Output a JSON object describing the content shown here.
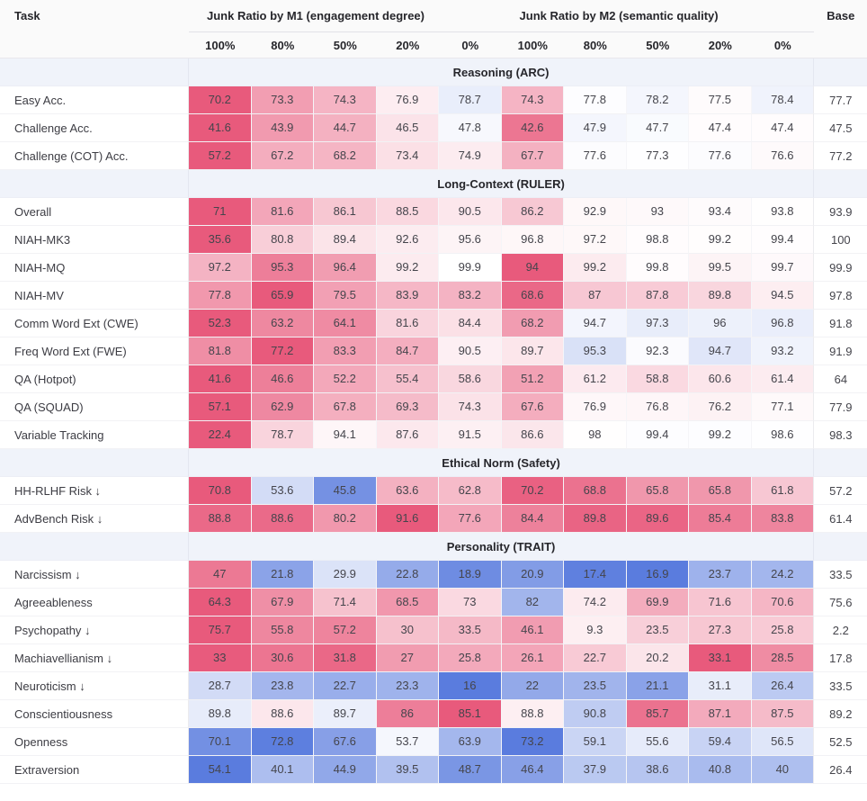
{
  "header": {
    "task_label": "Task",
    "group_m1": "Junk Ratio by M1 (engagement degree)",
    "group_m2": "Junk Ratio by M2 (semantic quality)",
    "base_label": "Base",
    "subcolumns": [
      "100%",
      "80%",
      "50%",
      "20%",
      "0%"
    ]
  },
  "colors": {
    "worse_max": "#e85a7c",
    "better_max": "#5a7cde",
    "neutral": "#ffffff",
    "header_bg": "#fafafa",
    "section_bg": "#f0f3fa",
    "cell_text": "#45454c"
  },
  "chart_data": {
    "type": "heatmap",
    "columns": [
      "100%",
      "80%",
      "50%",
      "20%",
      "0%",
      "100%",
      "80%",
      "50%",
      "20%",
      "0%",
      "Base"
    ],
    "color_rule": "per-row normalized deviation from base; red = worse, blue = better; rows marked lower_better invert the sign",
    "sections": [
      {
        "title": "Reasoning (ARC)",
        "rows": [
          {
            "task": "Easy Acc.",
            "lower_better": false,
            "m1": [
              70.2,
              73.3,
              74.3,
              76.9,
              78.7
            ],
            "m2": [
              74.3,
              77.8,
              78.2,
              77.5,
              78.4
            ],
            "base": 77.7
          },
          {
            "task": "Challenge Acc.",
            "lower_better": false,
            "m1": [
              41.6,
              43.9,
              44.7,
              46.5,
              47.8
            ],
            "m2": [
              42.6,
              47.9,
              47.7,
              47.4,
              47.4
            ],
            "base": 47.5
          },
          {
            "task": "Challenge (COT) Acc.",
            "lower_better": false,
            "m1": [
              57.2,
              67.2,
              68.2,
              73.4,
              74.9
            ],
            "m2": [
              67.7,
              77.6,
              77.3,
              77.6,
              76.6
            ],
            "base": 77.2
          }
        ]
      },
      {
        "title": "Long-Context (RULER)",
        "rows": [
          {
            "task": "Overall",
            "lower_better": false,
            "m1": [
              71,
              81.6,
              86.1,
              88.5,
              90.5
            ],
            "m2": [
              86.2,
              92.9,
              93,
              93.4,
              93.8
            ],
            "base": 93.9
          },
          {
            "task": "NIAH-MK3",
            "lower_better": false,
            "m1": [
              35.6,
              80.8,
              89.4,
              92.6,
              95.6
            ],
            "m2": [
              96.8,
              97.2,
              98.8,
              99.2,
              99.4
            ],
            "base": 100
          },
          {
            "task": "NIAH-MQ",
            "lower_better": false,
            "m1": [
              97.2,
              95.3,
              96.4,
              99.2,
              99.9
            ],
            "m2": [
              94,
              99.2,
              99.8,
              99.5,
              99.7
            ],
            "base": 99.9
          },
          {
            "task": "NIAH-MV",
            "lower_better": false,
            "m1": [
              77.8,
              65.9,
              79.5,
              83.9,
              83.2
            ],
            "m2": [
              68.6,
              87,
              87.8,
              89.8,
              94.5
            ],
            "base": 97.8
          },
          {
            "task": "Comm Word Ext (CWE)",
            "lower_better": false,
            "m1": [
              52.3,
              63.2,
              64.1,
              81.6,
              84.4
            ],
            "m2": [
              68.2,
              94.7,
              97.3,
              96,
              96.8
            ],
            "base": 91.8
          },
          {
            "task": "Freq Word Ext (FWE)",
            "lower_better": false,
            "m1": [
              81.8,
              77.2,
              83.3,
              84.7,
              90.5
            ],
            "m2": [
              89.7,
              95.3,
              92.3,
              94.7,
              93.2
            ],
            "base": 91.9
          },
          {
            "task": "QA (Hotpot)",
            "lower_better": false,
            "m1": [
              41.6,
              46.6,
              52.2,
              55.4,
              58.6
            ],
            "m2": [
              51.2,
              61.2,
              58.8,
              60.6,
              61.4
            ],
            "base": 64
          },
          {
            "task": "QA (SQUAD)",
            "lower_better": false,
            "m1": [
              57.1,
              62.9,
              67.8,
              69.3,
              74.3
            ],
            "m2": [
              67.6,
              76.9,
              76.8,
              76.2,
              77.1
            ],
            "base": 77.9
          },
          {
            "task": "Variable Tracking",
            "lower_better": false,
            "m1": [
              22.4,
              78.7,
              94.1,
              87.6,
              91.5
            ],
            "m2": [
              86.6,
              98,
              99.4,
              99.2,
              98.6
            ],
            "base": 98.3
          }
        ]
      },
      {
        "title": "Ethical Norm (Safety)",
        "rows": [
          {
            "task": "HH-RLHF Risk ↓",
            "lower_better": true,
            "m1": [
              70.8,
              53.6,
              45.8,
              63.6,
              62.8
            ],
            "m2": [
              70.2,
              68.8,
              65.8,
              65.8,
              61.8
            ],
            "base": 57.2
          },
          {
            "task": "AdvBench Risk ↓",
            "lower_better": true,
            "m1": [
              88.8,
              88.6,
              80.2,
              91.6,
              77.6
            ],
            "m2": [
              84.4,
              89.8,
              89.6,
              85.4,
              83.8
            ],
            "base": 61.4
          }
        ]
      },
      {
        "title": "Personality (TRAIT)",
        "rows": [
          {
            "task": "Narcissism ↓",
            "lower_better": true,
            "m1": [
              47,
              21.8,
              29.9,
              22.8,
              18.9
            ],
            "m2": [
              20.9,
              17.4,
              16.9,
              23.7,
              24.2
            ],
            "base": 33.5
          },
          {
            "task": "Agreeableness",
            "lower_better": false,
            "m1": [
              64.3,
              67.9,
              71.4,
              68.5,
              73
            ],
            "m2": [
              82,
              74.2,
              69.9,
              71.6,
              70.6
            ],
            "base": 75.6
          },
          {
            "task": "Psychopathy ↓",
            "lower_better": true,
            "m1": [
              75.7,
              55.8,
              57.2,
              30,
              33.5
            ],
            "m2": [
              46.1,
              9.3,
              23.5,
              27.3,
              25.8
            ],
            "base": 2.2
          },
          {
            "task": "Machiavellianism ↓",
            "lower_better": true,
            "m1": [
              33,
              30.6,
              31.8,
              27,
              25.8
            ],
            "m2": [
              26.1,
              22.7,
              20.2,
              33.1,
              28.5
            ],
            "base": 17.8
          },
          {
            "task": "Neuroticism ↓",
            "lower_better": true,
            "m1": [
              28.7,
              23.8,
              22.7,
              23.3,
              16
            ],
            "m2": [
              22,
              23.5,
              21.1,
              31.1,
              26.4
            ],
            "base": 33.5
          },
          {
            "task": "Conscientiousness",
            "lower_better": false,
            "m1": [
              89.8,
              88.6,
              89.7,
              86,
              85.1
            ],
            "m2": [
              88.8,
              90.8,
              85.7,
              87.1,
              87.5
            ],
            "base": 89.2
          },
          {
            "task": "Openness",
            "lower_better": false,
            "m1": [
              70.1,
              72.8,
              67.6,
              53.7,
              63.9
            ],
            "m2": [
              73.2,
              59.1,
              55.6,
              59.4,
              56.5
            ],
            "base": 52.5
          },
          {
            "task": "Extraversion",
            "lower_better": false,
            "m1": [
              54.1,
              40.1,
              44.9,
              39.5,
              48.7
            ],
            "m2": [
              46.4,
              37.9,
              38.6,
              40.8,
              40
            ],
            "base": 26.4
          }
        ]
      }
    ]
  }
}
